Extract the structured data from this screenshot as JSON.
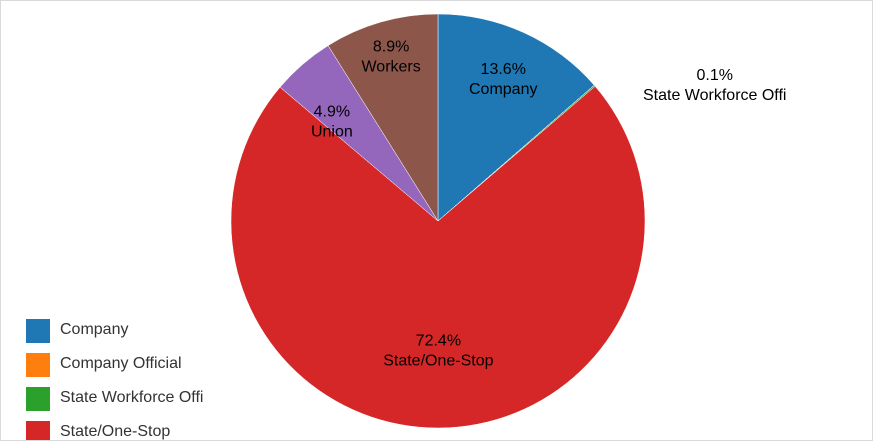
{
  "chart_data": {
    "type": "pie",
    "title": "",
    "slices": [
      {
        "label": "Company",
        "value": 13.6,
        "pct_label": "13.6%",
        "color": "#1f77b4"
      },
      {
        "label": "Company Official",
        "value": 0.01,
        "pct_label": "",
        "color": "#ff7f0e"
      },
      {
        "label": "State Workforce Offi",
        "value": 0.1,
        "pct_label": "0.1%",
        "color": "#2ca02c"
      },
      {
        "label": "State/One-Stop",
        "value": 72.4,
        "pct_label": "72.4%",
        "color": "#d62728"
      },
      {
        "label": "Union",
        "value": 4.9,
        "pct_label": "4.9%",
        "color": "#9467bd"
      },
      {
        "label": "Workers",
        "value": 8.9,
        "pct_label": "8.9%",
        "color": "#8c564b"
      }
    ],
    "legend": {
      "position": "bottom-left",
      "entries": [
        {
          "label": "Company",
          "color": "#1f77b4"
        },
        {
          "label": "Company Official",
          "color": "#ff7f0e"
        },
        {
          "label": "State Workforce Offi",
          "color": "#2ca02c"
        },
        {
          "label": "State/One-Stop",
          "color": "#d62728"
        }
      ]
    }
  }
}
